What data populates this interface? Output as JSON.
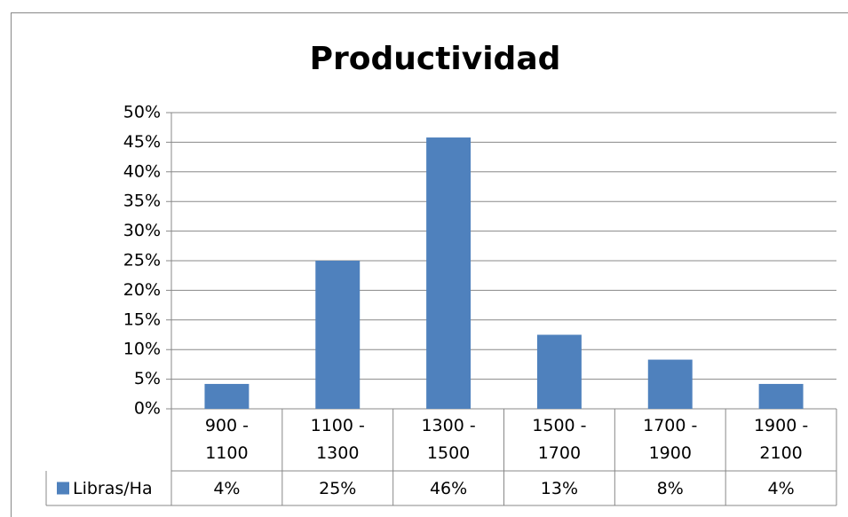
{
  "chart_data": {
    "type": "bar",
    "title": "Productividad",
    "categories": [
      "900 - 1100",
      "1100 - 1300",
      "1300 - 1500",
      "1500 - 1700",
      "1700 - 1900",
      "1900 - 2100"
    ],
    "series": [
      {
        "name": "Libras/Ha",
        "color": "#4f81bd",
        "values": [
          4.2,
          25,
          45.8,
          12.5,
          8.3,
          4.2
        ],
        "value_labels": [
          "4%",
          "25%",
          "46%",
          "13%",
          "8%",
          "4%"
        ]
      }
    ],
    "ylim": [
      0,
      50
    ],
    "yticks": [
      {
        "value": 0,
        "label": "0%"
      },
      {
        "value": 5,
        "label": "5%"
      },
      {
        "value": 10,
        "label": "10%"
      },
      {
        "value": 15,
        "label": "15%"
      },
      {
        "value": 20,
        "label": "20%"
      },
      {
        "value": 25,
        "label": "25%"
      },
      {
        "value": 30,
        "label": "30%"
      },
      {
        "value": 35,
        "label": "35%"
      },
      {
        "value": 40,
        "label": "40%"
      },
      {
        "value": 45,
        "label": "45%"
      },
      {
        "value": 50,
        "label": "50%"
      }
    ],
    "grid": true
  }
}
